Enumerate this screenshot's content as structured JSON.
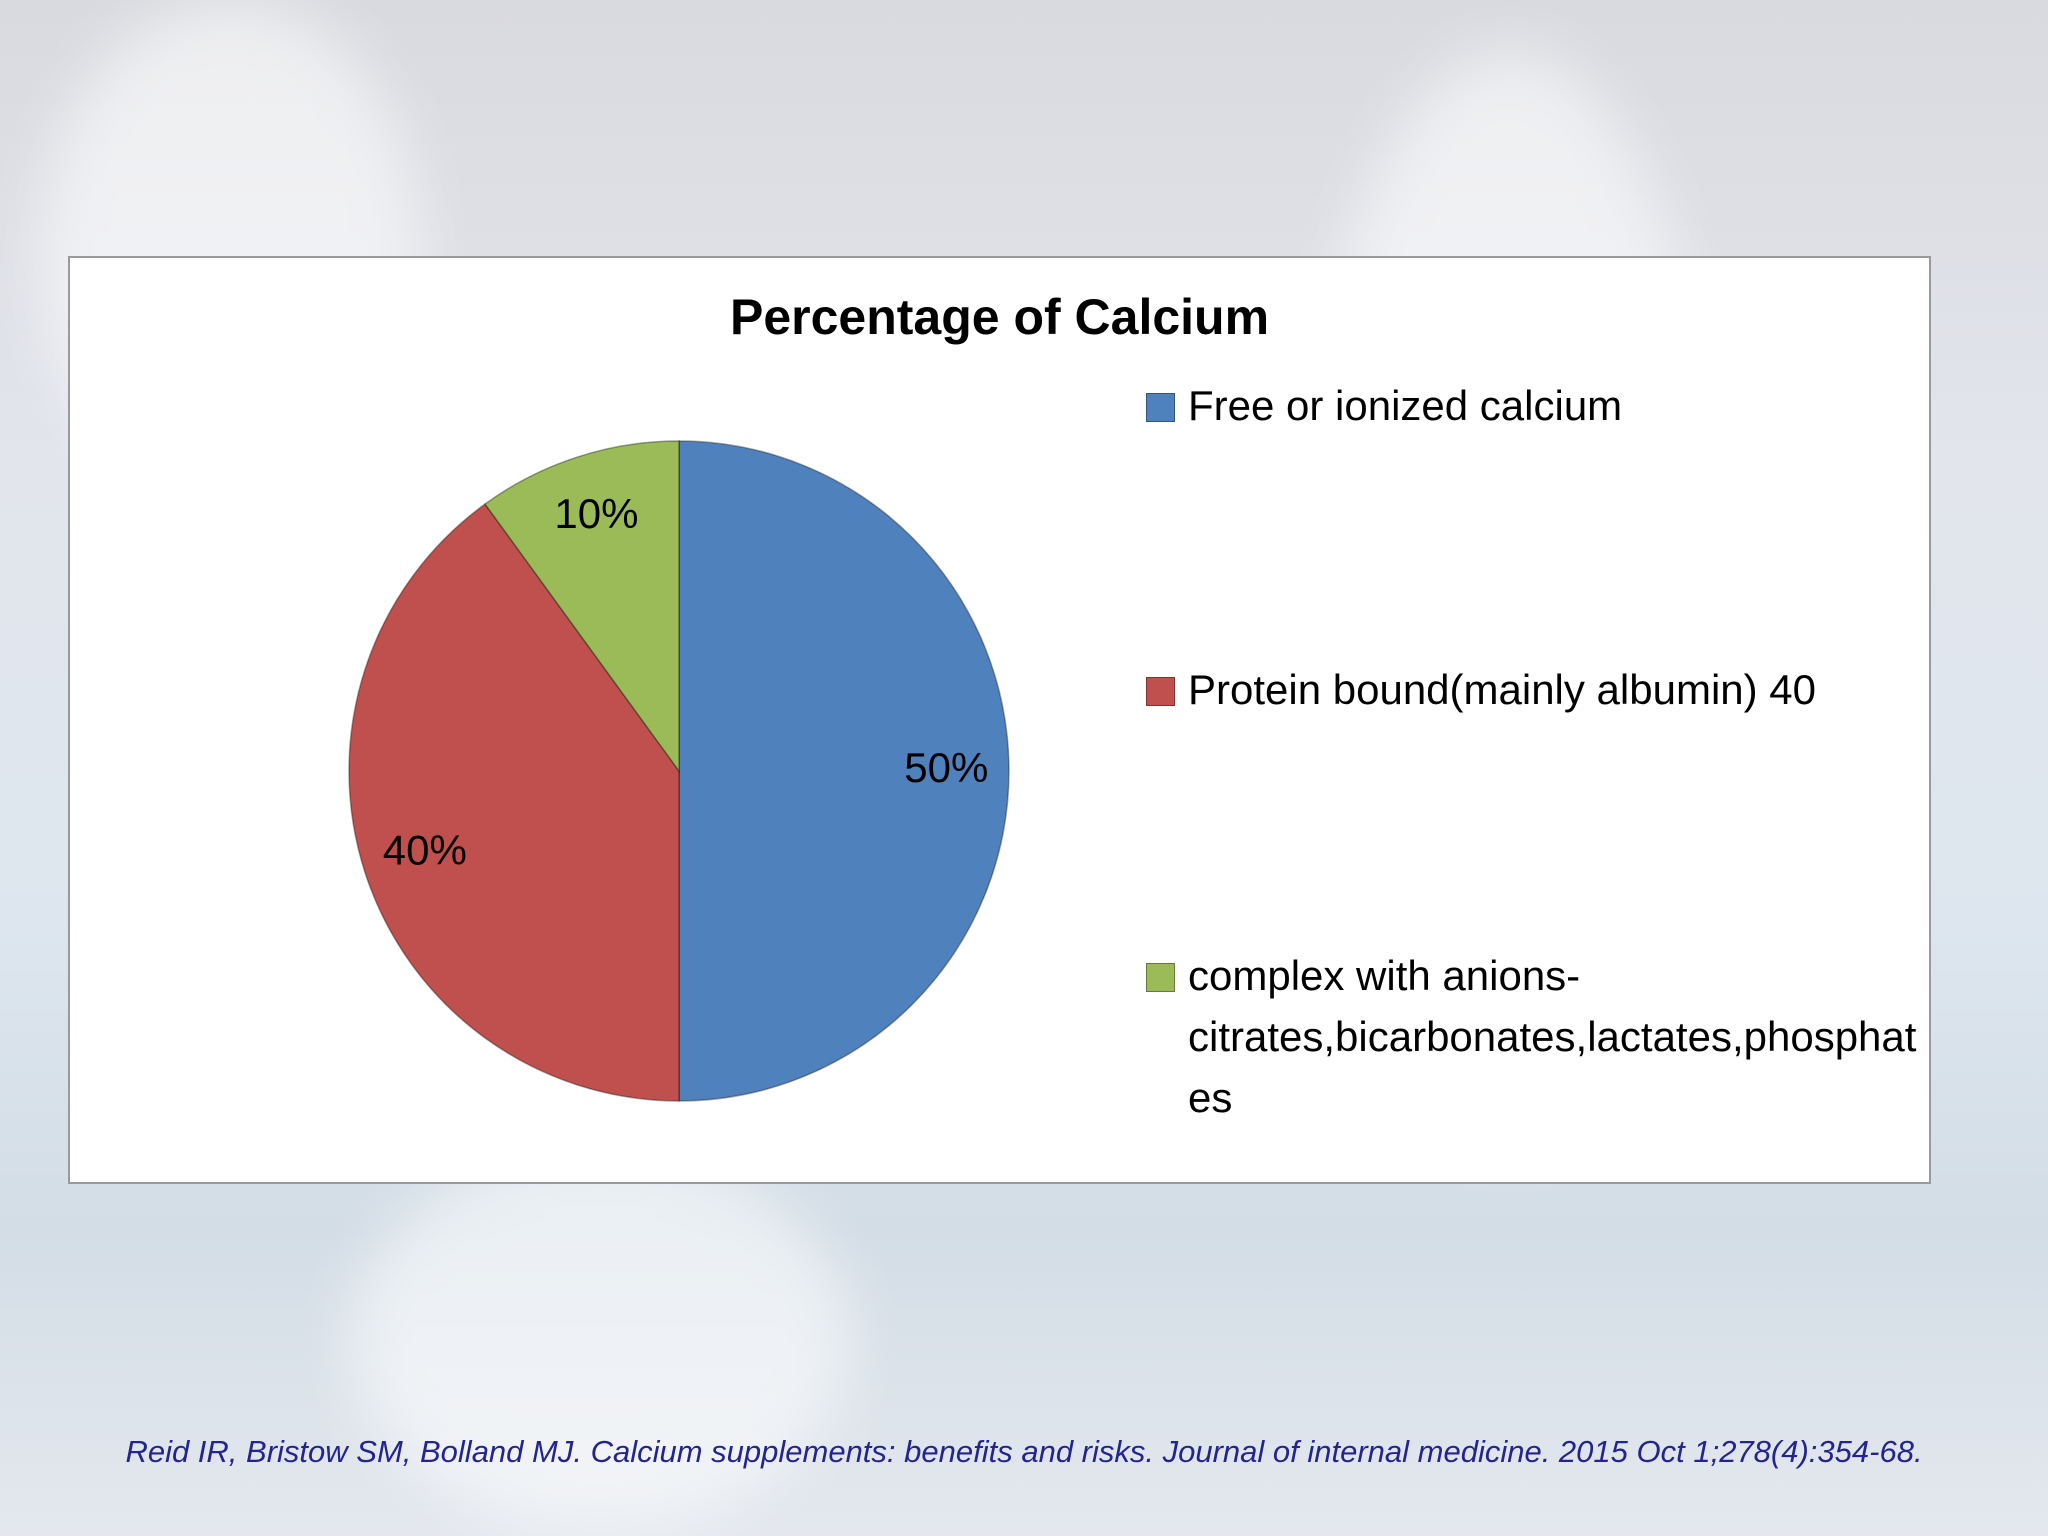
{
  "chart_data": {
    "type": "pie",
    "title": "Percentage of Calcium",
    "categories": [
      "Free or ionized calcium",
      "Protein bound(mainly albumin) 40",
      "complex with anions-citrates,bicarbonates,lactates,phosphates"
    ],
    "values": [
      50,
      40,
      10
    ],
    "value_labels": [
      "50%",
      "40%",
      "10%"
    ],
    "colors": [
      "#4f81bd",
      "#c0504d",
      "#9bbb59"
    ],
    "legend": "right"
  },
  "citation": "Reid IR, Bristow SM, Bolland MJ. Calcium supplements: benefits and risks. Journal of internal medicine. 2015 Oct 1;278(4):354-68."
}
